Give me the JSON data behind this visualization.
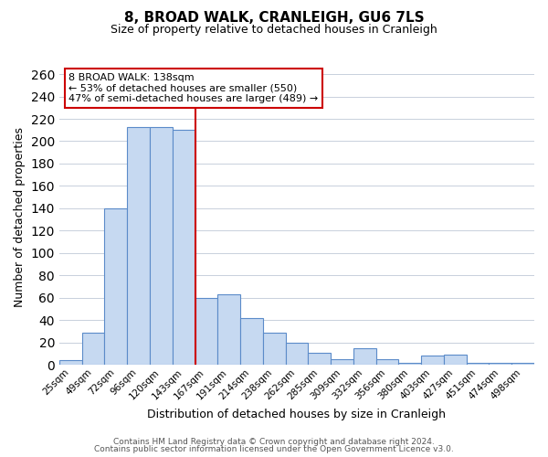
{
  "title": "8, BROAD WALK, CRANLEIGH, GU6 7LS",
  "subtitle": "Size of property relative to detached houses in Cranleigh",
  "xlabel": "Distribution of detached houses by size in Cranleigh",
  "ylabel": "Number of detached properties",
  "bar_labels": [
    "25sqm",
    "49sqm",
    "72sqm",
    "96sqm",
    "120sqm",
    "143sqm",
    "167sqm",
    "191sqm",
    "214sqm",
    "238sqm",
    "262sqm",
    "285sqm",
    "309sqm",
    "332sqm",
    "356sqm",
    "380sqm",
    "403sqm",
    "427sqm",
    "451sqm",
    "474sqm",
    "498sqm"
  ],
  "bar_values": [
    4,
    29,
    140,
    213,
    213,
    210,
    60,
    63,
    42,
    29,
    20,
    11,
    5,
    15,
    5,
    2,
    8,
    9,
    2,
    2,
    2
  ],
  "bar_color": "#c6d9f1",
  "bar_edge_color": "#5b8bc9",
  "vline_x": 5.5,
  "vline_color": "#cc0000",
  "annotation_title": "8 BROAD WALK: 138sqm",
  "annotation_line1": "← 53% of detached houses are smaller (550)",
  "annotation_line2": "47% of semi-detached houses are larger (489) →",
  "annotation_box_color": "#ffffff",
  "annotation_box_edge": "#cc0000",
  "ylim": [
    0,
    265
  ],
  "yticks": [
    0,
    20,
    40,
    60,
    80,
    100,
    120,
    140,
    160,
    180,
    200,
    220,
    240,
    260
  ],
  "footer1": "Contains HM Land Registry data © Crown copyright and database right 2024.",
  "footer2": "Contains public sector information licensed under the Open Government Licence v3.0.",
  "background_color": "#ffffff",
  "grid_color": "#c8d0dc"
}
